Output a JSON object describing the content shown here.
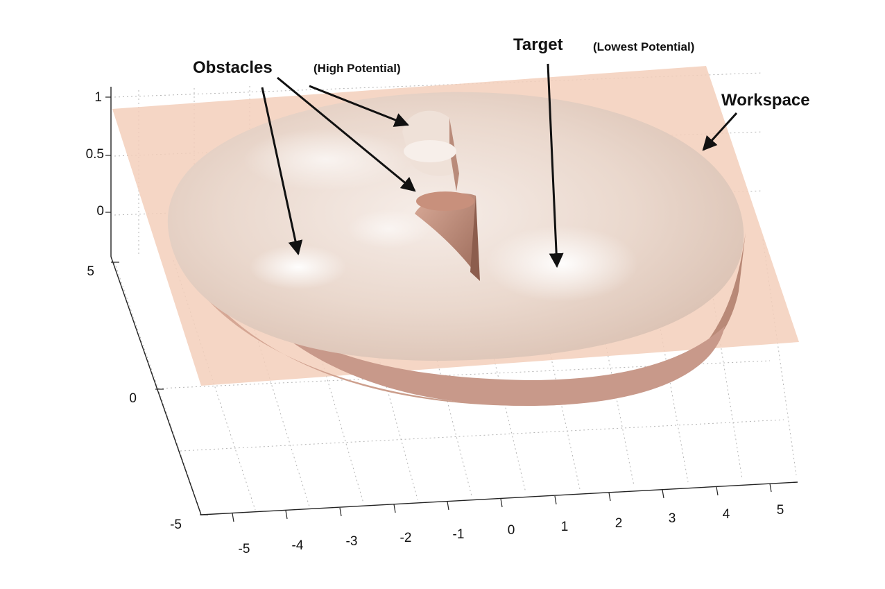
{
  "chart_data": {
    "type": "surface",
    "title": "",
    "x_axis": {
      "range": [
        -5,
        5
      ],
      "ticks": [
        -5,
        -4,
        -3,
        -2,
        -1,
        0,
        1,
        2,
        3,
        4,
        5
      ]
    },
    "y_axis": {
      "range": [
        -5,
        5
      ],
      "ticks": [
        -5,
        0,
        5
      ]
    },
    "z_axis": {
      "range": [
        0,
        1
      ],
      "ticks": [
        0,
        0.5,
        1
      ]
    },
    "grid": true,
    "surfaces": [
      {
        "role": "workspace-plane",
        "z": 0.85,
        "color": "#f3cfbb"
      },
      {
        "role": "potential-field",
        "shape": "disk",
        "radius": 5,
        "color": "#ecdcd2",
        "rim_color": "#c39886"
      }
    ],
    "features": [
      {
        "role": "target-minimum",
        "x": 1,
        "y": 0
      },
      {
        "role": "obstacle",
        "x": -3.8,
        "y": 0.5
      },
      {
        "role": "obstacle",
        "x": -1.5,
        "y": 3.5
      },
      {
        "role": "obstacle",
        "x": -1.2,
        "y": 1.6
      }
    ],
    "annotations": [
      {
        "label": "Obstacles",
        "note": "(High Potential)"
      },
      {
        "label": "Target",
        "note": "(Lowest Potential)"
      },
      {
        "label": "Workspace",
        "note": ""
      }
    ]
  }
}
